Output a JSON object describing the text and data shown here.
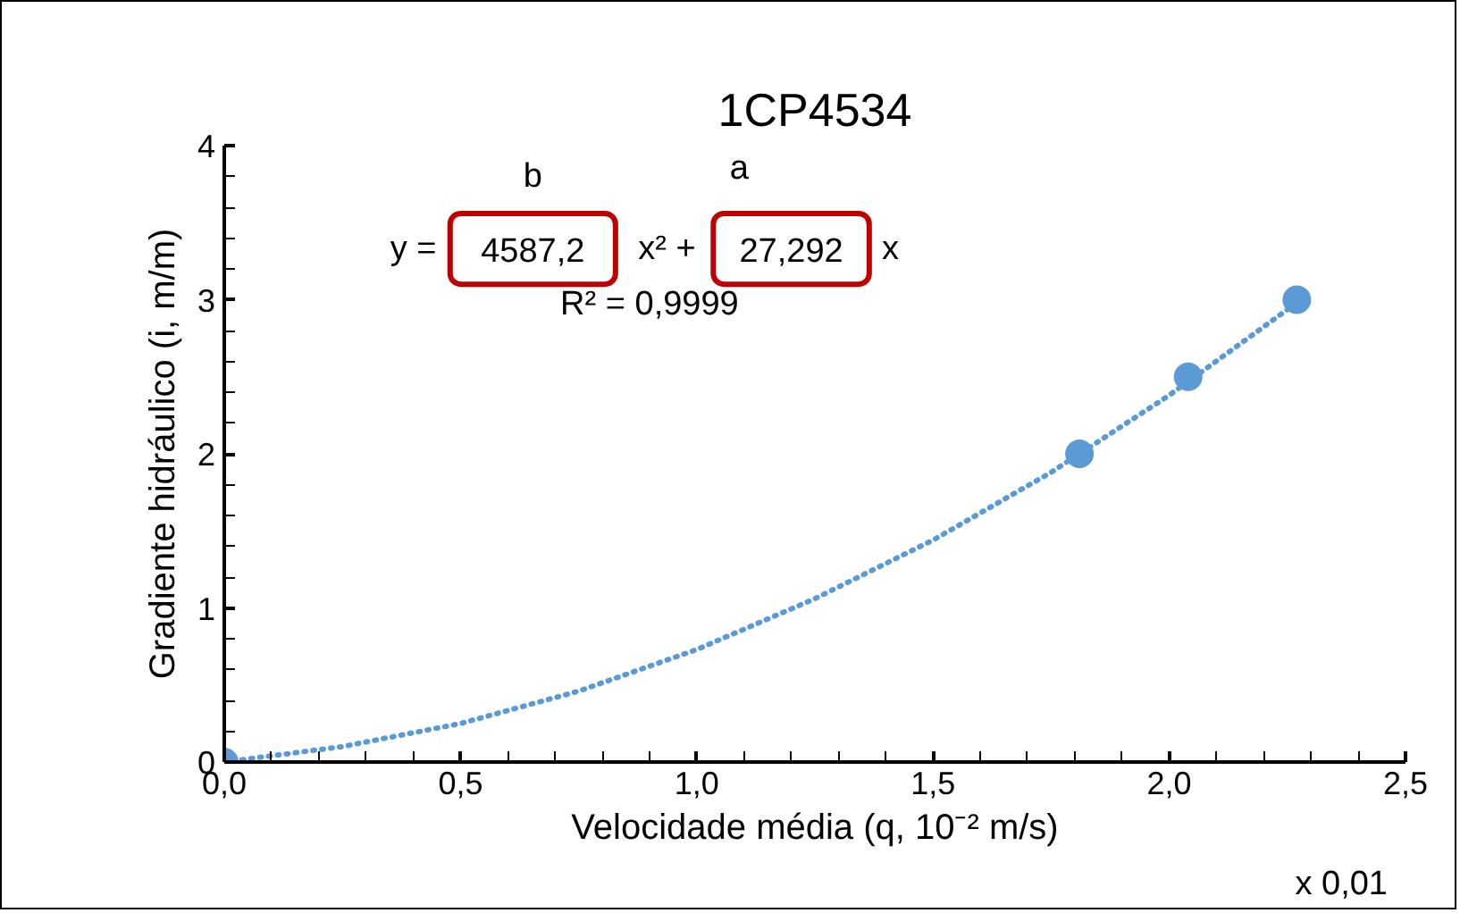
{
  "chart_data": {
    "type": "scatter",
    "title": "1CP4534",
    "xlabel": "Velocidade média (q, 10⁻² m/s)",
    "ylabel": "Gradiente hidráulico (i, m/m)",
    "series": [
      {
        "color": "#5b9bd5",
        "x": [
          0.0,
          1.81,
          2.04,
          2.27
        ],
        "values": [
          0,
          2,
          2.5,
          3
        ],
        "marker": "circle"
      },
      {
        "type": "line",
        "color": "#5b9bd5",
        "line_style": "dotted",
        "marker": "none",
        "x": [
          0,
          0.25,
          0.5,
          0.75,
          1.0,
          1.25,
          1.5,
          1.75,
          2.0,
          2.27
        ],
        "values": [
          0,
          0.1,
          0.25,
          0.46,
          0.73,
          1.06,
          1.44,
          1.88,
          2.38,
          2.98
        ]
      }
    ],
    "annotations": [
      "b",
      "a",
      "y =",
      "4587,2",
      "x² +",
      "27,292",
      "x",
      "R² = 0,9999",
      "x 0,01"
    ],
    "xlim": [
      0,
      2.5
    ],
    "xticks": [
      {
        "value": 0,
        "label": "0,0"
      },
      {
        "value": 0.5,
        "label": "0,5"
      },
      {
        "value": 1,
        "label": "1,0"
      },
      {
        "value": 1.5,
        "label": "1,5"
      },
      {
        "value": 2,
        "label": "2,0"
      },
      {
        "value": 2.5,
        "label": "2,5"
      }
    ],
    "ylim": [
      0,
      4
    ],
    "yticks": [
      0,
      1,
      2,
      3,
      4
    ],
    "grid": false
  }
}
